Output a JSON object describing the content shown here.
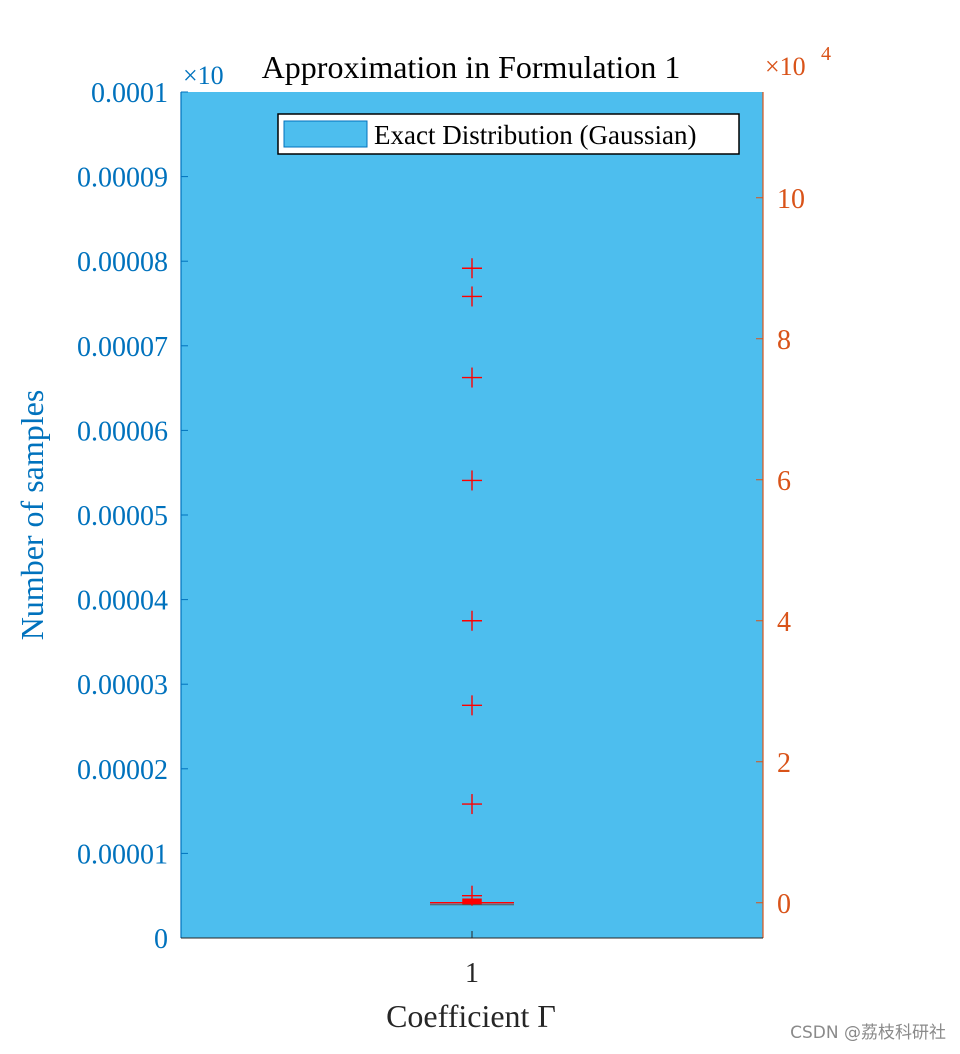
{
  "chart_data": {
    "type": "box",
    "title": "Approximation in Formulation 1",
    "xlabel": "Coefficient Γ",
    "ylabel_left": "Number of samples",
    "ylabel_right": "",
    "x_categories": [
      "1"
    ],
    "left_axis": {
      "color": "#0072BD",
      "ylim": [
        0,
        0.0001
      ],
      "ticks": [
        0,
        1e-05,
        2e-05,
        3e-05,
        4e-05,
        5e-05,
        6e-05,
        7e-05,
        8e-05,
        9e-05,
        0.0001
      ],
      "tick_labels": [
        "0",
        "0.00001",
        "0.00002",
        "0.00003",
        "0.00004",
        "0.00005",
        "0.00006",
        "0.00007",
        "0.00008",
        "0.00009",
        "0.0001"
      ],
      "exponent_label": "×10"
    },
    "right_axis": {
      "color": "#D95319",
      "ylim": [
        -0.5,
        11.5
      ],
      "ticks": [
        0,
        2,
        4,
        6,
        8,
        10
      ],
      "tick_labels": [
        "0",
        "2",
        "4",
        "6",
        "8",
        "10"
      ],
      "exponent_base": "×10",
      "exponent_power": "4"
    },
    "histogram": {
      "name": "Exact Distribution (Gaussian)",
      "color": "#4DBEEE"
    },
    "boxplot": {
      "category": "1",
      "color": "#FF0000",
      "median": 0,
      "q1": -0.02,
      "q3": 0.05,
      "whisker_low": -0.03,
      "whisker_high": 0.08,
      "outliers": [
        9.0,
        8.6,
        7.45,
        5.99,
        4.0,
        2.8,
        1.4,
        0.1
      ]
    },
    "legend": {
      "position": "top-right",
      "entries": [
        "Exact Distribution (Gaussian)"
      ]
    }
  },
  "watermark": "CSDN @荔枝科研社"
}
